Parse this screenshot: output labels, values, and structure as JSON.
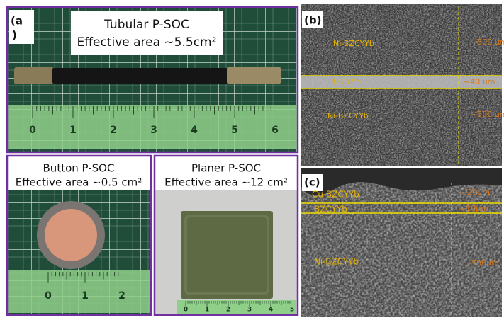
{
  "panel_a": {
    "label_lines": [
      "(a",
      ")"
    ],
    "title": "Tubular P-SOC",
    "area": "Effective area ~5.5cm²",
    "ruler": [
      0,
      1,
      2,
      3,
      4,
      5,
      6
    ]
  },
  "panel_button": {
    "title": "Button P-SOC",
    "area": "Effective area ~0.5 cm²",
    "ruler": [
      0,
      1,
      2
    ]
  },
  "panel_planar": {
    "title": "Planer P-SOC",
    "area": "Effective area ~12 cm²",
    "ruler": [
      0,
      1,
      2,
      3,
      4,
      5
    ]
  },
  "panel_b": {
    "label": "(b)",
    "layers": [
      "Ni-BZCYYb",
      "BZCYYb",
      "Ni-BZCYYb"
    ],
    "thickness": [
      "~500 um",
      "~40 um",
      "~500 um"
    ]
  },
  "panel_c": {
    "label": "(c)",
    "layers": [
      "Cu-BZCYYb",
      "BZCYYb",
      "Ni-BZCYYb"
    ],
    "thickness": [
      "~20μm",
      "~10μm",
      "~500μm"
    ]
  }
}
